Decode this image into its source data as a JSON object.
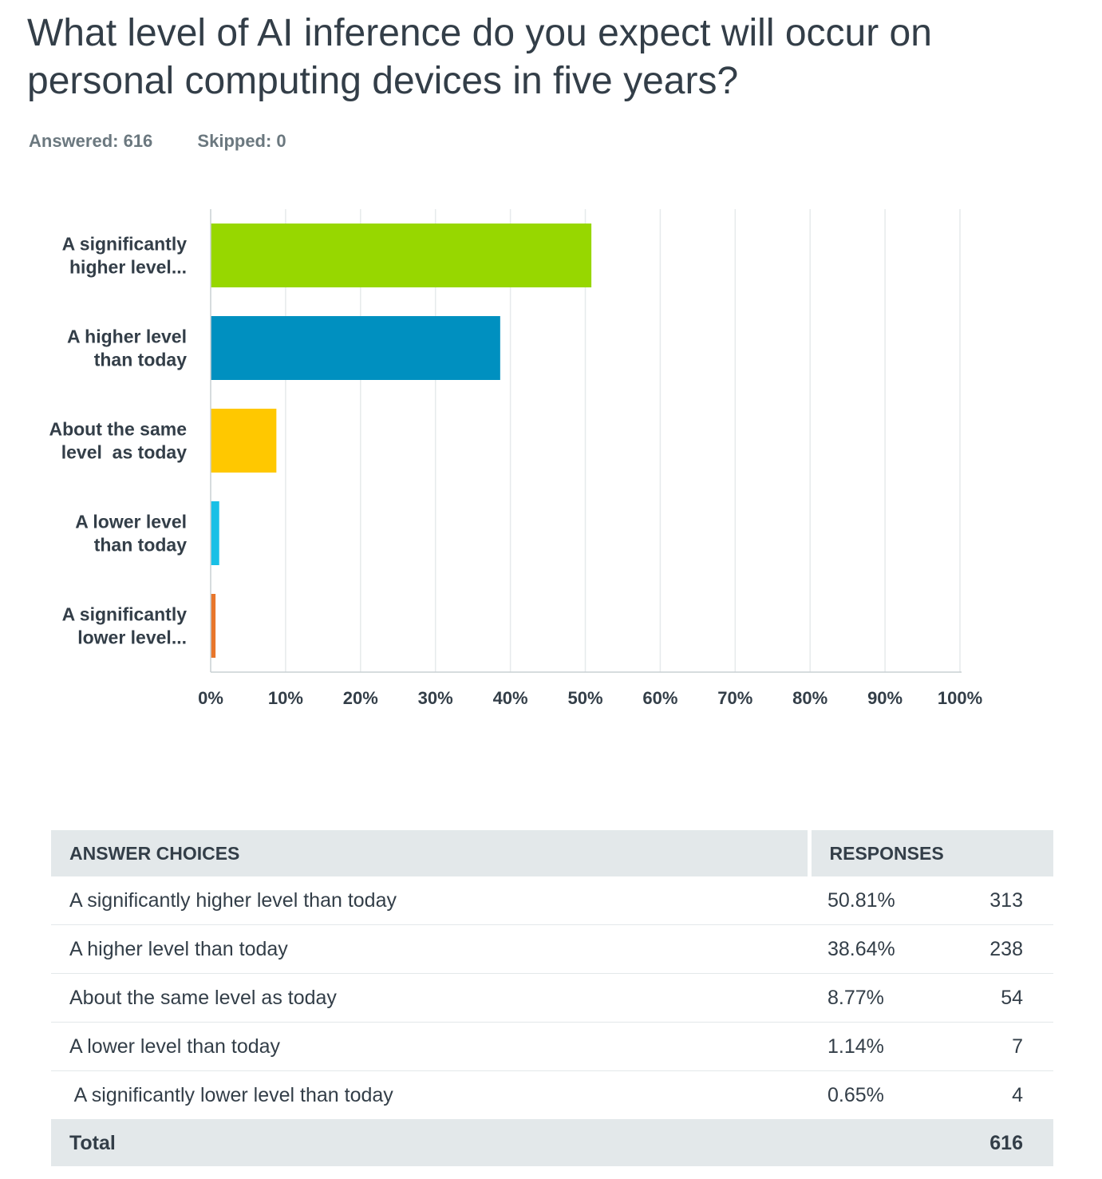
{
  "question": {
    "title": "What level of AI inference do you expect will occur on personal computing devices in five years?",
    "answered_label": "Answered: 616",
    "skipped_label": "Skipped: 0"
  },
  "chart_data": {
    "type": "bar",
    "orientation": "horizontal",
    "categories": [
      [
        "A significantly",
        "higher level..."
      ],
      [
        "A higher level",
        "than today"
      ],
      [
        "About the same",
        "level  as today"
      ],
      [
        "A lower level",
        "than today"
      ],
      [
        "A significantly",
        "lower level..."
      ]
    ],
    "values": [
      50.81,
      38.64,
      8.77,
      1.14,
      0.65
    ],
    "colors": [
      "#97d700",
      "#0090c0",
      "#ffc800",
      "#19c0e6",
      "#e8762b"
    ],
    "xlim": [
      0,
      100
    ],
    "x_ticks": [
      "0%",
      "10%",
      "20%",
      "30%",
      "40%",
      "50%",
      "60%",
      "70%",
      "80%",
      "90%",
      "100%"
    ],
    "grid": true
  },
  "table": {
    "headers": {
      "choice": "ANSWER CHOICES",
      "responses": "RESPONSES"
    },
    "rows": [
      {
        "choice": "A significantly higher level than today",
        "pct": "50.81%",
        "count": "313"
      },
      {
        "choice": "A higher level than today",
        "pct": "38.64%",
        "count": "238"
      },
      {
        "choice": "About the same level as today",
        "pct": "8.77%",
        "count": "54"
      },
      {
        "choice": "A lower level than today",
        "pct": "1.14%",
        "count": "7"
      },
      {
        "choice": " A significantly lower level than today",
        "pct": "0.65%",
        "count": "4"
      }
    ],
    "total": {
      "label": "Total",
      "count": "616"
    }
  }
}
